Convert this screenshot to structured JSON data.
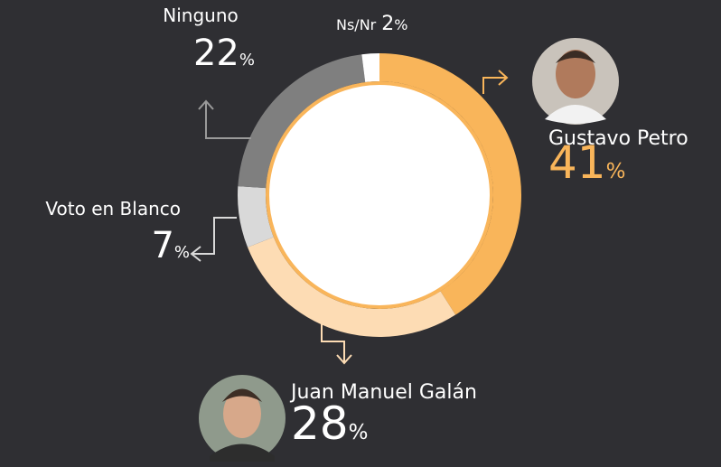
{
  "chart_data": {
    "type": "donut",
    "categories": [
      "Gustavo Petro",
      "Juan Manuel Galán",
      "Voto en Blanco",
      "Ninguno",
      "Ns/Nr"
    ],
    "values": [
      41,
      28,
      7,
      22,
      2
    ],
    "colors": [
      "#f9b55a",
      "#fddcb4",
      "#d9d9d9",
      "#7f7f7f",
      "#ffffff"
    ],
    "unit": "%"
  }
}
